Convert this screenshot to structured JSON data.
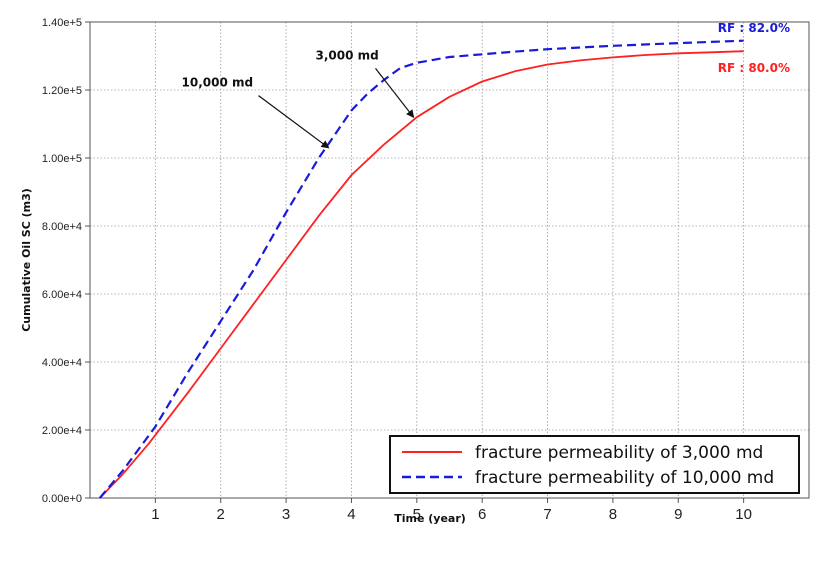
{
  "chart_data": {
    "type": "line",
    "xlabel": "Time (year)",
    "ylabel": "Cumulative Oil SC (m3)",
    "xlim": [
      0,
      11
    ],
    "ylim": [
      0,
      140000
    ],
    "x_ticks": [
      "1",
      "2",
      "3",
      "4",
      "5",
      "6",
      "7",
      "8",
      "9",
      "10"
    ],
    "y_ticks": [
      "0.00e+0",
      "2.00e+4",
      "4.00e+4",
      "6.00e+4",
      "8.00e+4",
      "1.00e+5",
      "1.20e+5",
      "1.40e+5"
    ],
    "grid": true,
    "legend_position": "bottom-right",
    "series": [
      {
        "name": "fracture permeability of 3,000 md",
        "color": "#ff2020",
        "style": "solid",
        "x": [
          0.15,
          0.5,
          0.9,
          1.5,
          2,
          2.5,
          3,
          3.5,
          4,
          4.5,
          5,
          5.5,
          6,
          6.5,
          7,
          7.5,
          8,
          8.5,
          9,
          9.5,
          10
        ],
        "y": [
          0,
          7000,
          16000,
          31000,
          44000,
          57000,
          70000,
          83000,
          95000,
          104000,
          112000,
          118000,
          122500,
          125500,
          127500,
          128700,
          129600,
          130300,
          130800,
          131100,
          131400
        ]
      },
      {
        "name": "fracture permeability of 10,000 md",
        "color": "#1a1adb",
        "style": "dashed",
        "x": [
          0.15,
          0.5,
          1,
          1.5,
          2,
          2.5,
          3,
          3.5,
          4,
          4.25,
          4.5,
          4.75,
          5,
          5.5,
          6,
          6.5,
          7,
          8,
          9,
          10
        ],
        "y": [
          0,
          8000,
          21000,
          37000,
          52000,
          67000,
          84000,
          100000,
          114000,
          119000,
          123000,
          126500,
          128000,
          129700,
          130500,
          131300,
          132000,
          133000,
          133800,
          134500
        ]
      }
    ],
    "annotations": [
      {
        "text": "10,000 md",
        "x": 1.4,
        "y": 121000,
        "arrow_to": [
          3.65,
          103000
        ]
      },
      {
        "text": "3,000 md",
        "x": 3.45,
        "y": 129000,
        "arrow_to": [
          4.95,
          112000
        ]
      }
    ],
    "rf_labels": [
      {
        "text": "RF : 82.0%",
        "color": "#1a1adb"
      },
      {
        "text": "RF : 80.0%",
        "color": "#ff2020"
      }
    ]
  }
}
